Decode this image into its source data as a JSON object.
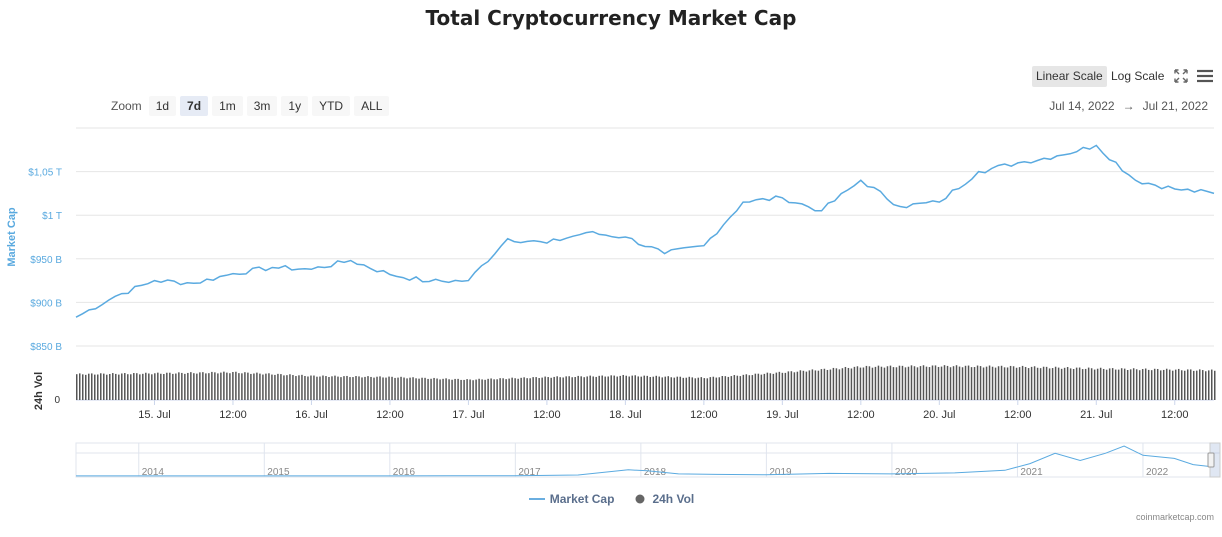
{
  "title": "Total Cryptocurrency Market Cap",
  "scale": {
    "linear_label": "Linear Scale",
    "log_label": "Log Scale",
    "active": "linear"
  },
  "icons": {
    "fullscreen": "fullscreen-icon",
    "menu": "menu-icon"
  },
  "zoom": {
    "label": "Zoom",
    "buttons": [
      "1d",
      "7d",
      "1m",
      "3m",
      "1y",
      "YTD",
      "ALL"
    ],
    "active": "7d"
  },
  "range": {
    "from": "Jul 14, 2022",
    "arrow": "→",
    "to": "Jul 21, 2022"
  },
  "legend": [
    {
      "label": "Market Cap",
      "color": "#6aaee0"
    },
    {
      "label": "24h Vol",
      "color": "#666666"
    }
  ],
  "credits": "coinmarketcap.com",
  "colors": {
    "line": "#5aaae0",
    "volume": "#555555",
    "grid": "#e6e6e6",
    "axis_label": "#59a9df"
  },
  "chart_data": {
    "type": "line",
    "series": [
      {
        "name": "Market Cap",
        "x": [
          "2022-07-14 12:00",
          "2022-07-14 18:00",
          "2022-07-15 00:00",
          "2022-07-15 06:00",
          "2022-07-15 12:00",
          "2022-07-15 18:00",
          "2022-07-16 00:00",
          "2022-07-16 06:00",
          "2022-07-16 12:00",
          "2022-07-16 18:00",
          "2022-07-17 00:00",
          "2022-07-17 06:00",
          "2022-07-17 12:00",
          "2022-07-17 18:00",
          "2022-07-18 00:00",
          "2022-07-18 06:00",
          "2022-07-18 12:00",
          "2022-07-18 18:00",
          "2022-07-19 00:00",
          "2022-07-19 06:00",
          "2022-07-19 12:00",
          "2022-07-19 18:00",
          "2022-07-20 00:00",
          "2022-07-20 06:00",
          "2022-07-20 12:00",
          "2022-07-20 18:00",
          "2022-07-21 00:00",
          "2022-07-21 06:00",
          "2022-07-21 12:00",
          "2022-07-21 18:00"
        ],
        "values": [
          883,
          907,
          925,
          922,
          933,
          940,
          938,
          948,
          932,
          924,
          925,
          973,
          968,
          980,
          975,
          956,
          965,
          1015,
          1020,
          1005,
          1040,
          1010,
          1015,
          1050,
          1060,
          1068,
          1080,
          1040,
          1030,
          1025
        ]
      },
      {
        "name": "24h Vol",
        "type": "bar",
        "x": [
          "2022-07-14 12:00",
          "2022-07-15 00:00",
          "2022-07-15 12:00",
          "2022-07-16 00:00",
          "2022-07-16 12:00",
          "2022-07-17 00:00",
          "2022-07-17 12:00",
          "2022-07-18 00:00",
          "2022-07-18 12:00",
          "2022-07-19 00:00",
          "2022-07-19 12:00",
          "2022-07-20 00:00",
          "2022-07-20 12:00",
          "2022-07-21 00:00",
          "2022-07-21 12:00",
          "2022-07-21 18:00"
        ],
        "values": [
          0.7,
          0.72,
          0.75,
          0.65,
          0.62,
          0.55,
          0.62,
          0.66,
          0.6,
          0.75,
          0.9,
          0.92,
          0.9,
          0.85,
          0.82,
          0.8
        ]
      }
    ],
    "x_tick_labels": [
      "15. Jul",
      "12:00",
      "16. Jul",
      "12:00",
      "17. Jul",
      "12:00",
      "18. Jul",
      "12:00",
      "19. Jul",
      "12:00",
      "20. Jul",
      "12:00",
      "21. Jul",
      "12:00"
    ],
    "y_tick_labels": [
      "$850 B",
      "$900 B",
      "$950 B",
      "$1 T",
      "$1,05 T"
    ],
    "ylabel": "Market Cap",
    "ylim": [
      850,
      1100
    ],
    "volume_label": "24h Vol",
    "volume_tick_labels": [
      "0"
    ],
    "navigator": {
      "tick_labels": [
        "2014",
        "2015",
        "2016",
        "2017",
        "2018",
        "2019",
        "2020",
        "2021",
        "2022"
      ],
      "x": [
        2013.5,
        2014,
        2014.5,
        2015,
        2015.5,
        2016,
        2016.5,
        2017,
        2017.5,
        2017.9,
        2018.05,
        2018.3,
        2018.6,
        2019,
        2019.5,
        2020,
        2020.5,
        2020.9,
        2021.1,
        2021.3,
        2021.5,
        2021.7,
        2021.85,
        2022,
        2022.25,
        2022.4,
        2022.55
      ],
      "values": [
        0.01,
        0.01,
        0.005,
        0.005,
        0.005,
        0.01,
        0.015,
        0.02,
        0.1,
        0.6,
        0.5,
        0.2,
        0.15,
        0.12,
        0.25,
        0.2,
        0.3,
        0.55,
        1.2,
        2.2,
        1.5,
        2.2,
        2.9,
        2.0,
        1.7,
        1.1,
        0.9
      ]
    },
    "grid": true,
    "legend_position": "bottom-center"
  }
}
